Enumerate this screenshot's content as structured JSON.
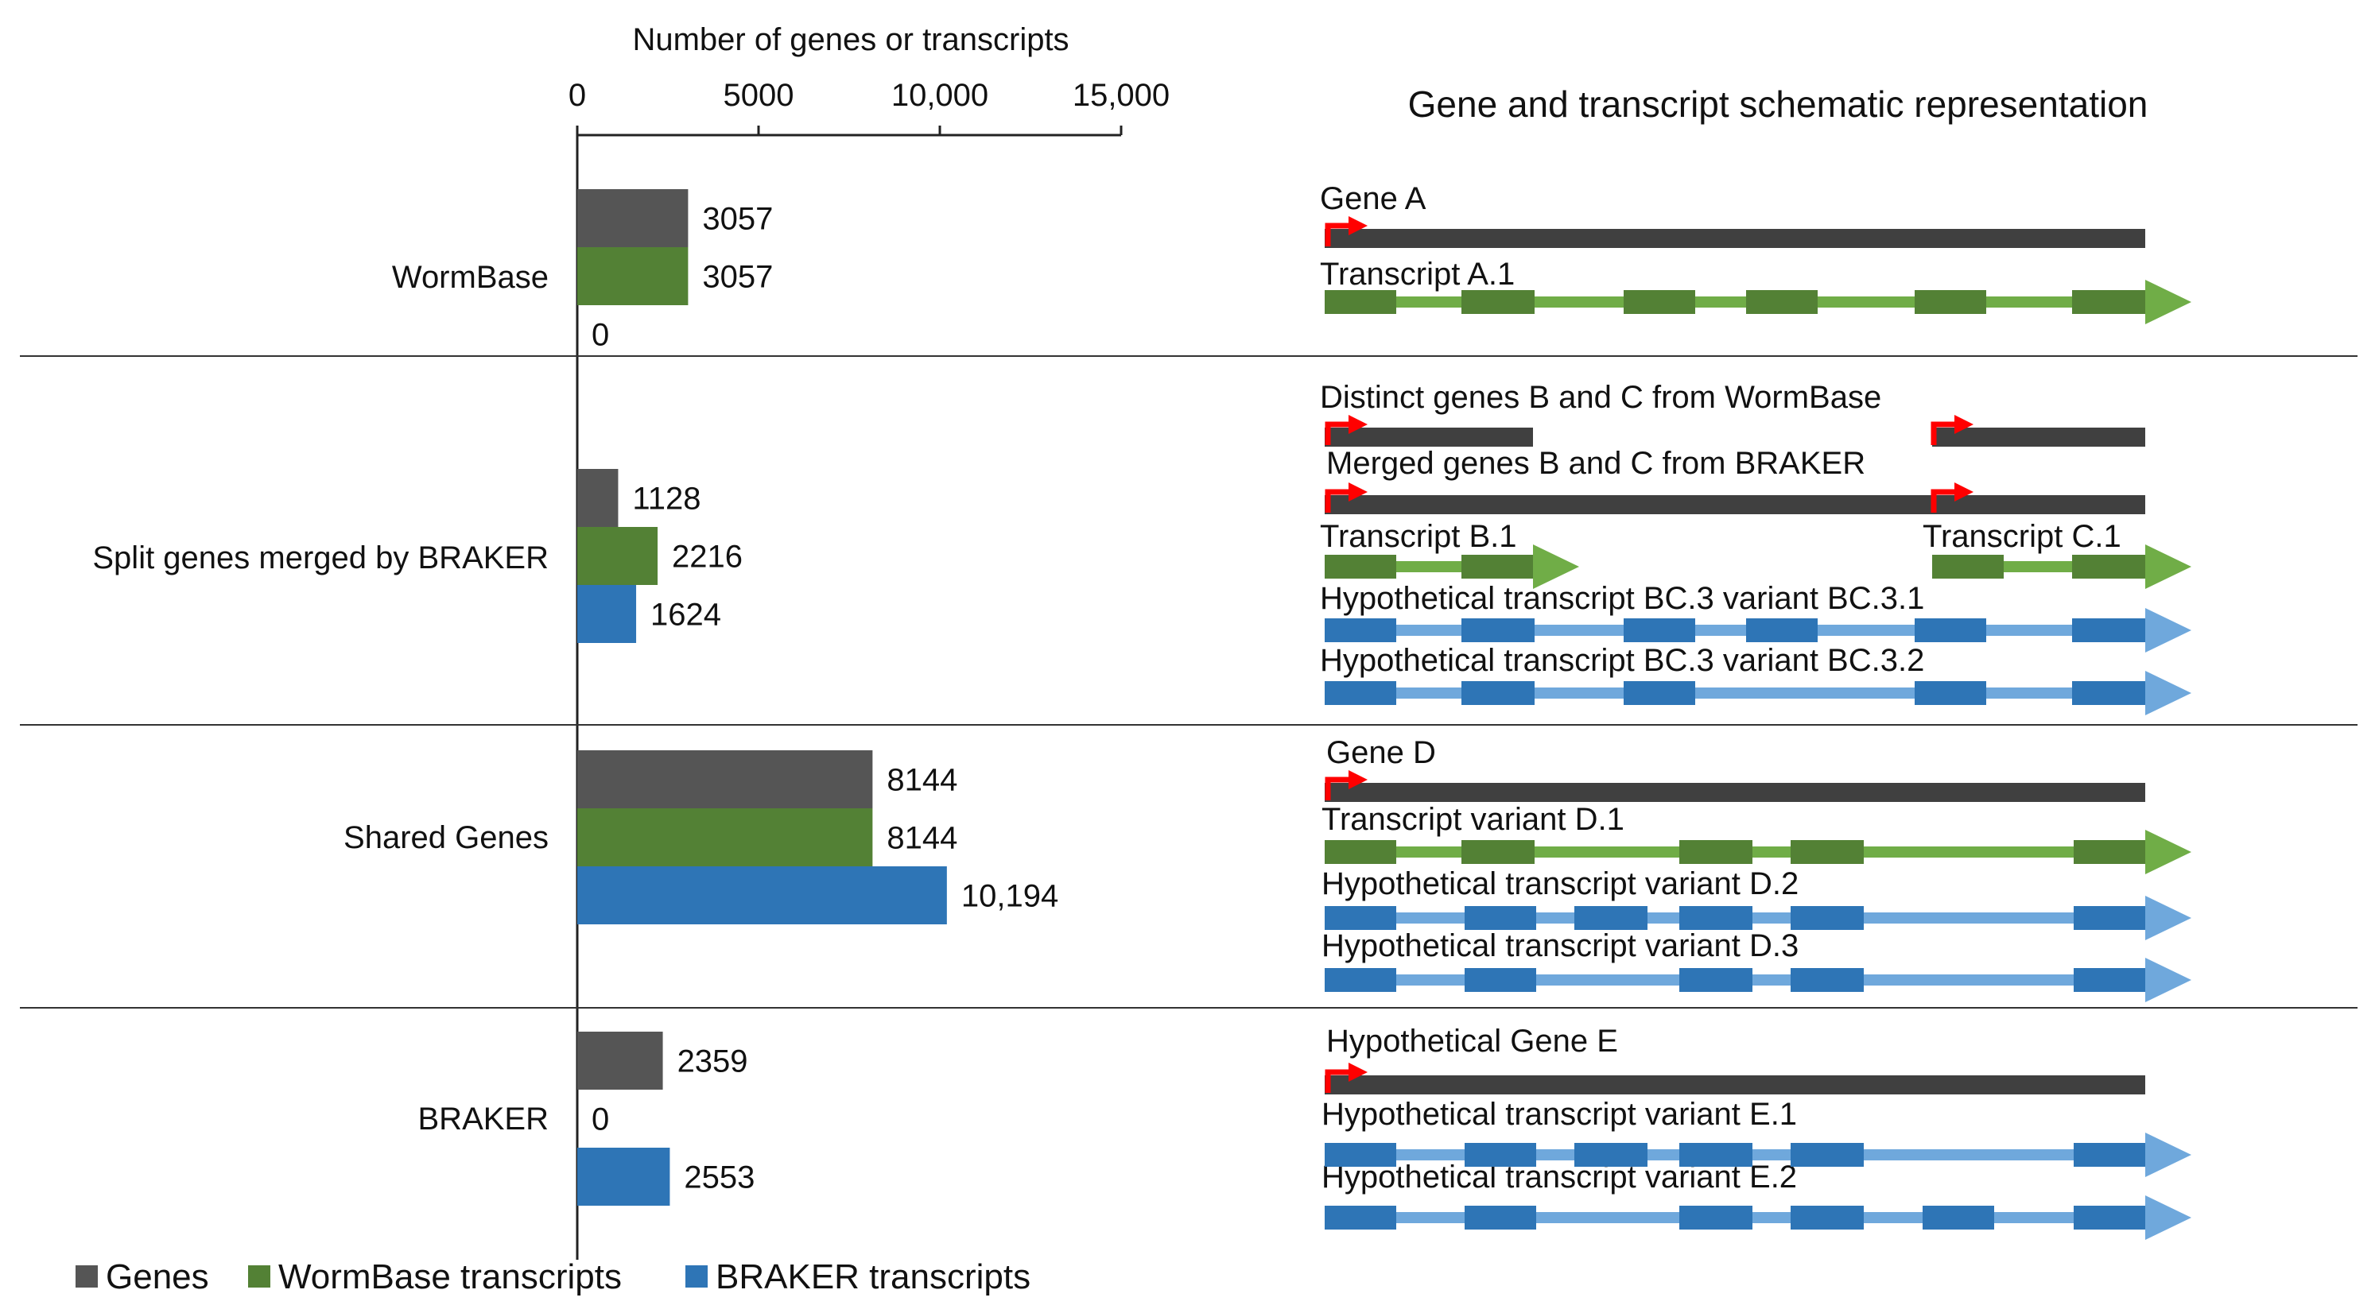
{
  "chart_data": {
    "type": "bar",
    "orientation": "horizontal",
    "x_axis_title": "Number of genes or transcripts",
    "x_ticks": [
      "0",
      "5000",
      "10,000",
      "15,000"
    ],
    "x_tick_values": [
      0,
      5000,
      10000,
      15000
    ],
    "xlim": [
      0,
      15000
    ],
    "legend_position": "bottom-left",
    "categories": [
      "WormBase",
      "Split genes merged by BRAKER",
      "Shared Genes",
      "BRAKER"
    ],
    "series": [
      {
        "name": "Genes",
        "color": "#555555",
        "values": [
          3057,
          1128,
          8144,
          2359
        ],
        "labels": [
          "3057",
          "1128",
          "8144",
          "2359"
        ]
      },
      {
        "name": "WormBase transcripts",
        "color": "#538135",
        "values": [
          3057,
          2216,
          8144,
          0
        ],
        "labels": [
          "3057",
          "2216",
          "8144",
          "0"
        ]
      },
      {
        "name": "BRAKER transcripts",
        "color": "#2E75B6",
        "values": [
          0,
          1624,
          10194,
          2553
        ],
        "labels": [
          "0",
          "1624",
          "10,194",
          "2553"
        ]
      }
    ]
  },
  "schematic": {
    "title": "Gene and transcript schematic representation",
    "colors": {
      "gene": "#404040",
      "wb_intron": "#70AD47",
      "wb_exon": "#538135",
      "bk_intron": "#6FA8DC",
      "bk_exon": "#2E75B6",
      "tss": "#FF0000"
    },
    "groups": [
      {
        "id": "A",
        "labels": [
          "Gene A",
          "Transcript A.1"
        ]
      },
      {
        "id": "BC",
        "labels": [
          "Distinct genes B and C from WormBase",
          "Merged genes B and C from BRAKER",
          "Transcript B.1",
          "Transcript C.1",
          "Hypothetical transcript BC.3 variant BC.3.1",
          "Hypothetical transcript BC.3 variant BC.3.2"
        ]
      },
      {
        "id": "D",
        "labels": [
          "Gene D",
          "Transcript variant D.1",
          "Hypothetical transcript variant D.2",
          "Hypothetical transcript variant D.3"
        ]
      },
      {
        "id": "E",
        "labels": [
          "Hypothetical Gene E",
          "Hypothetical transcript variant E.1",
          "Hypothetical transcript variant E.2"
        ]
      }
    ]
  }
}
